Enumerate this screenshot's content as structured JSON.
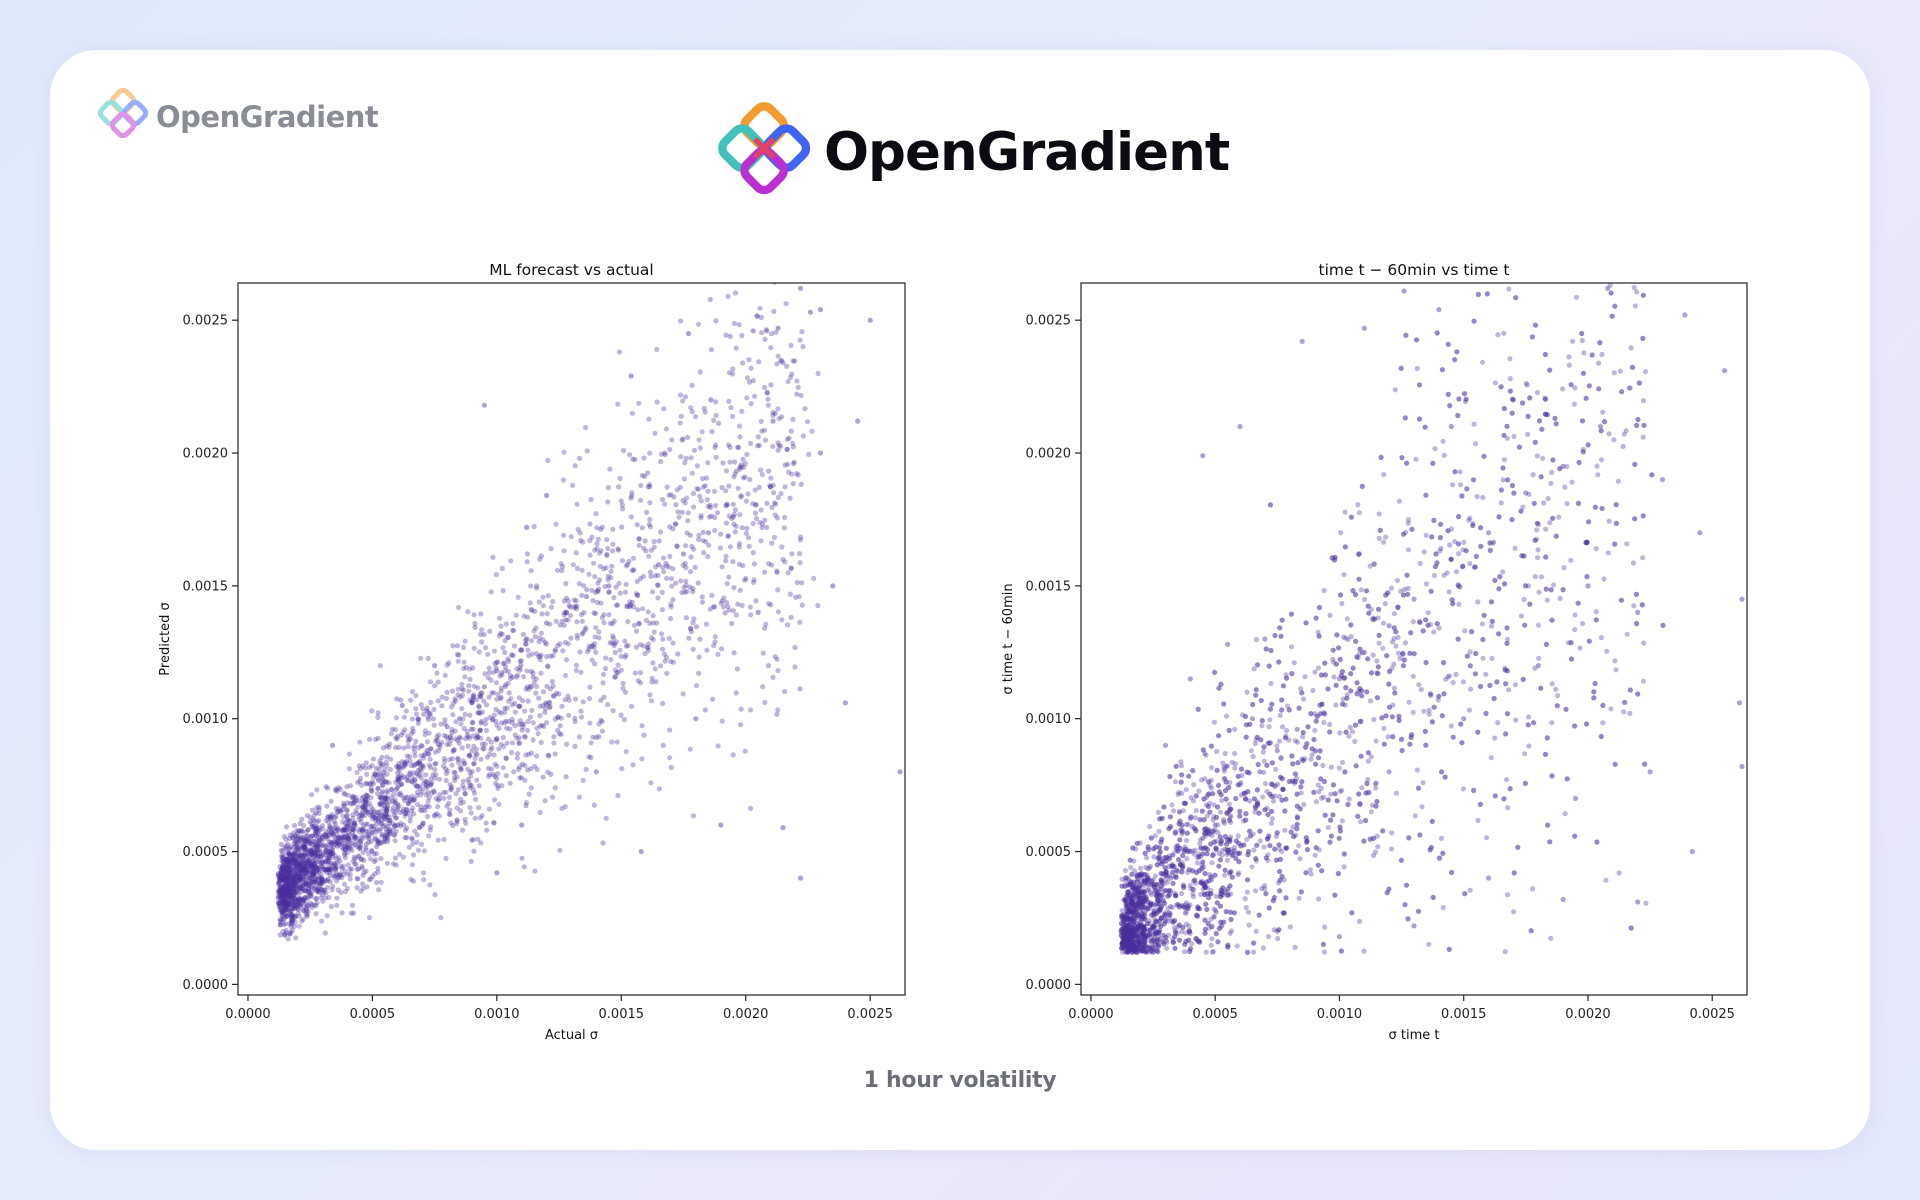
{
  "brand": {
    "small_logo_text": "OpenGradient",
    "big_logo_text": "OpenGradient",
    "small_logo_icon": "opengradient-logo-icon",
    "big_logo_icon": "opengradient-logo-icon"
  },
  "caption": "1 hour volatility",
  "colors": {
    "points": "#4b2e9e",
    "card_background": "#ffffff",
    "page_background": "#e3eafb"
  },
  "chart_data": [
    {
      "type": "scatter",
      "title": "ML forecast vs actual",
      "xlabel": "Actual σ",
      "ylabel": "Predicted σ",
      "xlim": [
        -4e-05,
        0.00264
      ],
      "ylim": [
        -4e-05,
        0.00264
      ],
      "xticks": [
        "0.0000",
        "0.0005",
        "0.0010",
        "0.0015",
        "0.0020",
        "0.0025"
      ],
      "yticks": [
        "0.0000",
        "0.0005",
        "0.0010",
        "0.0015",
        "0.0020",
        "0.0025"
      ],
      "grid": false,
      "point_count_approx": 5000,
      "points": [
        [
          0.00013,
          0.00028
        ],
        [
          0.00018,
          0.0003
        ],
        [
          0.00022,
          0.00036
        ],
        [
          0.00025,
          0.0004
        ],
        [
          0.00028,
          0.00043
        ],
        [
          0.0003,
          0.00046
        ],
        [
          0.00033,
          0.0005
        ],
        [
          0.00036,
          0.00052
        ],
        [
          0.0004,
          0.00056
        ],
        [
          0.00043,
          0.0006
        ],
        [
          0.00046,
          0.00058
        ],
        [
          0.0005,
          0.00064
        ],
        [
          0.00053,
          0.00068
        ],
        [
          0.00056,
          0.0007
        ],
        [
          0.0006,
          0.00074
        ],
        [
          0.00064,
          0.00078
        ],
        [
          0.00068,
          0.00083
        ],
        [
          0.00072,
          0.00088
        ],
        [
          0.00076,
          0.00092
        ],
        [
          0.0008,
          0.00097
        ],
        [
          0.00085,
          0.001
        ],
        [
          0.0009,
          0.00106
        ],
        [
          0.00095,
          0.00112
        ],
        [
          0.001,
          0.00118
        ],
        [
          0.00106,
          0.00124
        ],
        [
          0.00112,
          0.0013
        ],
        [
          0.0012,
          0.00136
        ],
        [
          0.00128,
          0.0014
        ],
        [
          0.00136,
          0.00146
        ],
        [
          0.00145,
          0.0015
        ],
        [
          0.00155,
          0.00156
        ],
        [
          0.00165,
          0.00158
        ],
        [
          0.00175,
          0.00162
        ],
        [
          0.00185,
          0.0017
        ],
        [
          0.00195,
          0.00176
        ],
        [
          0.00095,
          0.00218
        ],
        [
          0.00177,
          0.00245
        ],
        [
          0.00203,
          0.00246
        ],
        [
          0.00213,
          0.00247
        ],
        [
          0.00222,
          0.00262
        ],
        [
          0.00226,
          0.00253
        ],
        [
          0.0023,
          0.00254
        ],
        [
          0.0025,
          0.0025
        ],
        [
          0.00262,
          0.0008
        ],
        [
          0.00222,
          0.0004
        ],
        [
          0.00215,
          0.00059
        ],
        [
          0.0024,
          0.00106
        ],
        [
          0.00245,
          0.00212
        ],
        [
          0.00154,
          0.00229
        ],
        [
          0.0012,
          0.00184
        ],
        [
          0.00112,
          0.00172
        ],
        [
          0.00186,
          0.0022
        ],
        [
          0.00211,
          0.00212
        ],
        [
          0.0023,
          0.002
        ],
        [
          0.001,
          0.00042
        ],
        [
          0.00062,
          0.00105
        ],
        [
          0.00075,
          0.0012
        ],
        [
          0.00034,
          0.0009
        ],
        [
          0.0011,
          0.0006
        ],
        [
          0.0014,
          0.0008
        ],
        [
          0.00158,
          0.0005
        ],
        [
          0.0019,
          0.0006
        ],
        [
          0.0018,
          0.001
        ],
        [
          0.00205,
          0.0014
        ],
        [
          0.00235,
          0.0015
        ]
      ]
    },
    {
      "type": "scatter",
      "title": "time t − 60min vs time t",
      "xlabel": "σ time t",
      "ylabel": "σ time t − 60min",
      "xlim": [
        -4e-05,
        0.00264
      ],
      "ylim": [
        -4e-05,
        0.00264
      ],
      "xticks": [
        "0.0000",
        "0.0005",
        "0.0010",
        "0.0015",
        "0.0020",
        "0.0025"
      ],
      "yticks": [
        "0.0000",
        "0.0005",
        "0.0010",
        "0.0015",
        "0.0020",
        "0.0025"
      ],
      "grid": false,
      "point_count_approx": 5000,
      "points": [
        [
          0.00013,
          0.00014
        ],
        [
          0.00016,
          0.00018
        ],
        [
          0.0002,
          0.00025
        ],
        [
          0.00024,
          0.0003
        ],
        [
          0.00028,
          0.00036
        ],
        [
          0.00032,
          0.0004
        ],
        [
          0.00036,
          0.00045
        ],
        [
          0.0004,
          0.0005
        ],
        [
          0.00045,
          0.00055
        ],
        [
          0.0005,
          0.0006
        ],
        [
          0.00056,
          0.00066
        ],
        [
          0.00062,
          0.00072
        ],
        [
          0.00068,
          0.0008
        ],
        [
          0.00075,
          0.00088
        ],
        [
          0.00083,
          0.00096
        ],
        [
          0.00092,
          0.00105
        ],
        [
          0.001,
          0.00115
        ],
        [
          0.0011,
          0.00125
        ],
        [
          0.0012,
          0.00135
        ],
        [
          0.0013,
          0.00145
        ],
        [
          0.00145,
          0.0016
        ],
        [
          0.0016,
          0.0017
        ],
        [
          0.00175,
          0.00185
        ],
        [
          0.0019,
          0.00195
        ],
        [
          0.00205,
          0.0021
        ],
        [
          0.00126,
          0.00261
        ],
        [
          0.0014,
          0.00254
        ],
        [
          0.00208,
          0.00262
        ],
        [
          0.00239,
          0.00252
        ],
        [
          0.00255,
          0.00231
        ],
        [
          0.00262,
          0.00082
        ],
        [
          0.00262,
          0.00145
        ],
        [
          0.00261,
          0.00106
        ],
        [
          0.00242,
          0.0005
        ],
        [
          0.0022,
          0.00031
        ],
        [
          0.0019,
          0.00032
        ],
        [
          0.0016,
          0.0004
        ],
        [
          0.0013,
          0.00022
        ],
        [
          0.001,
          0.00018
        ],
        [
          0.00075,
          0.0002
        ],
        [
          0.00045,
          0.00199
        ],
        [
          0.00085,
          0.00242
        ],
        [
          0.0011,
          0.00247
        ],
        [
          0.0006,
          0.0021
        ],
        [
          0.0007,
          0.0013
        ],
        [
          0.0003,
          0.0009
        ],
        [
          0.0004,
          0.00115
        ],
        [
          0.00055,
          0.00128
        ],
        [
          0.00065,
          0.001
        ],
        [
          0.0012,
          0.0008
        ],
        [
          0.0015,
          0.001
        ],
        [
          0.0018,
          0.0012
        ],
        [
          0.002,
          0.0015
        ],
        [
          0.0023,
          0.0019
        ],
        [
          0.00245,
          0.0017
        ],
        [
          0.0017,
          0.0022
        ],
        [
          0.00145,
          0.0021
        ],
        [
          0.0022,
          0.0014
        ],
        [
          0.00225,
          0.0008
        ],
        [
          0.00195,
          0.0007
        ]
      ]
    }
  ]
}
